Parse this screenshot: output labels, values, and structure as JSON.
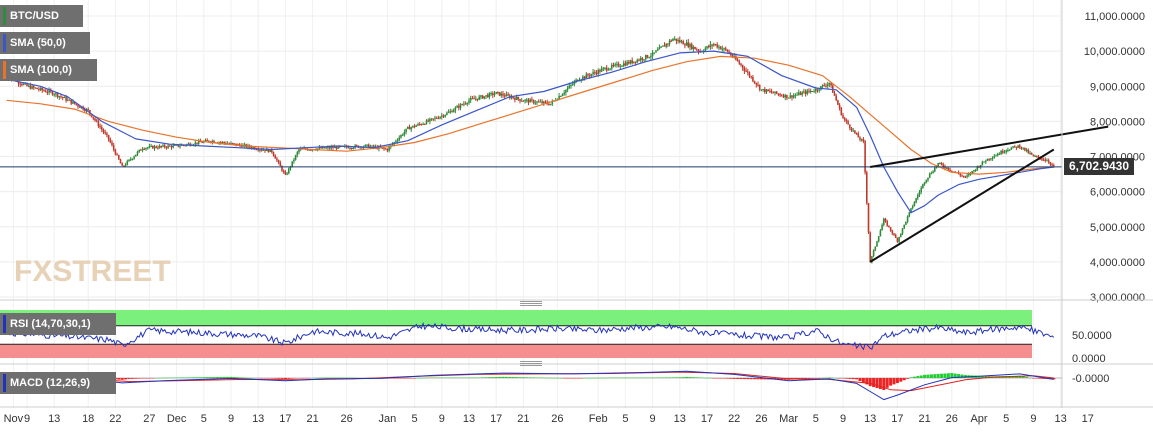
{
  "chart_data": {
    "type": "line",
    "symbol": "BTC/USD",
    "indicators": {
      "sma50_label": "SMA (50,0)",
      "sma100_label": "SMA (100,0)",
      "rsi_label": "RSI (14,70,30,1)",
      "macd_label": "MACD (12,26,9)"
    },
    "watermark": "FXSTREET",
    "colors": {
      "candle_up": "#2e8b3a",
      "candle_down": "#c0392b",
      "sma50": "#3a56c9",
      "sma100": "#e8742c",
      "price_line": "#1a3a6b",
      "trend": "#111111",
      "rsi_line": "#2233bb",
      "rsi_overbought": "#7cf07c",
      "rsi_oversold": "#f58f8f"
    },
    "current_price_label": "6,702.9430",
    "current_price": 6702.943,
    "y_axis": {
      "min": 3000,
      "max": 11000,
      "ticks": [
        "3,000.0000",
        "4,000.0000",
        "5,000.0000",
        "6,000.0000",
        "7,000.0000",
        "8,000.0000",
        "9,000.0000",
        "10,000.0000",
        "11,000.0000"
      ]
    },
    "x_labels": [
      {
        "day": -2,
        "label": "Nov"
      },
      {
        "day": 0,
        "label": "9"
      },
      {
        "day": 4,
        "label": "13"
      },
      {
        "day": 9,
        "label": "18"
      },
      {
        "day": 13,
        "label": "22"
      },
      {
        "day": 18,
        "label": "27"
      },
      {
        "day": 22,
        "label": "Dec"
      },
      {
        "day": 26,
        "label": "5"
      },
      {
        "day": 30,
        "label": "9"
      },
      {
        "day": 34,
        "label": "13"
      },
      {
        "day": 38,
        "label": "17"
      },
      {
        "day": 42,
        "label": "21"
      },
      {
        "day": 47,
        "label": "26"
      },
      {
        "day": 53,
        "label": "Jan"
      },
      {
        "day": 57,
        "label": "5"
      },
      {
        "day": 61,
        "label": "9"
      },
      {
        "day": 65,
        "label": "13"
      },
      {
        "day": 69,
        "label": "17"
      },
      {
        "day": 73,
        "label": "21"
      },
      {
        "day": 78,
        "label": "26"
      },
      {
        "day": 84,
        "label": "Feb"
      },
      {
        "day": 88,
        "label": "5"
      },
      {
        "day": 92,
        "label": "9"
      },
      {
        "day": 96,
        "label": "13"
      },
      {
        "day": 100,
        "label": "17"
      },
      {
        "day": 104,
        "label": "22"
      },
      {
        "day": 108,
        "label": "26"
      },
      {
        "day": 112,
        "label": "Mar"
      },
      {
        "day": 116,
        "label": "5"
      },
      {
        "day": 120,
        "label": "9"
      },
      {
        "day": 124,
        "label": "13"
      },
      {
        "day": 128,
        "label": "17"
      },
      {
        "day": 132,
        "label": "21"
      },
      {
        "day": 136,
        "label": "26"
      },
      {
        "day": 140,
        "label": "Apr"
      },
      {
        "day": 144,
        "label": "5"
      },
      {
        "day": 148,
        "label": "9"
      },
      {
        "day": 152,
        "label": "13"
      },
      {
        "day": 156,
        "label": "17"
      }
    ],
    "price_path": [
      [
        -3,
        9300
      ],
      [
        0,
        9000
      ],
      [
        4,
        8800
      ],
      [
        9,
        8300
      ],
      [
        12,
        7500
      ],
      [
        14,
        6700
      ],
      [
        17,
        7250
      ],
      [
        22,
        7300
      ],
      [
        27,
        7450
      ],
      [
        32,
        7300
      ],
      [
        36,
        7150
      ],
      [
        38,
        6450
      ],
      [
        40,
        7200
      ],
      [
        45,
        7250
      ],
      [
        50,
        7300
      ],
      [
        53,
        7200
      ],
      [
        56,
        7800
      ],
      [
        59,
        8000
      ],
      [
        62,
        8250
      ],
      [
        65,
        8600
      ],
      [
        69,
        8800
      ],
      [
        73,
        8600
      ],
      [
        77,
        8500
      ],
      [
        81,
        9200
      ],
      [
        85,
        9500
      ],
      [
        89,
        9700
      ],
      [
        92,
        9900
      ],
      [
        95,
        10350
      ],
      [
        97,
        10200
      ],
      [
        99,
        10000
      ],
      [
        101,
        10200
      ],
      [
        103,
        10000
      ],
      [
        105,
        9600
      ],
      [
        108,
        8900
      ],
      [
        112,
        8700
      ],
      [
        116,
        8900
      ],
      [
        118,
        9100
      ],
      [
        120,
        8100
      ],
      [
        122,
        7600
      ],
      [
        123,
        7400
      ],
      [
        124,
        4000
      ],
      [
        126,
        5200
      ],
      [
        128,
        4600
      ],
      [
        130,
        5500
      ],
      [
        132,
        6300
      ],
      [
        134,
        6800
      ],
      [
        136,
        6600
      ],
      [
        138,
        6400
      ],
      [
        141,
        6900
      ],
      [
        144,
        7200
      ],
      [
        146,
        7300
      ],
      [
        148,
        7000
      ],
      [
        150,
        6900
      ],
      [
        151,
        6702.943
      ]
    ],
    "sma50": [
      [
        -3,
        9200
      ],
      [
        2,
        9000
      ],
      [
        6,
        8700
      ],
      [
        11,
        8000
      ],
      [
        16,
        7500
      ],
      [
        21,
        7350
      ],
      [
        26,
        7300
      ],
      [
        31,
        7250
      ],
      [
        36,
        7200
      ],
      [
        41,
        7250
      ],
      [
        46,
        7300
      ],
      [
        51,
        7250
      ],
      [
        56,
        7450
      ],
      [
        61,
        7900
      ],
      [
        66,
        8300
      ],
      [
        71,
        8700
      ],
      [
        76,
        8850
      ],
      [
        81,
        9150
      ],
      [
        86,
        9400
      ],
      [
        91,
        9700
      ],
      [
        96,
        9950
      ],
      [
        101,
        10000
      ],
      [
        106,
        9850
      ],
      [
        111,
        9300
      ],
      [
        116,
        8950
      ],
      [
        119,
        8900
      ],
      [
        122,
        8400
      ],
      [
        124,
        7600
      ],
      [
        126,
        6700
      ],
      [
        128,
        6000
      ],
      [
        130,
        5400
      ],
      [
        132,
        5600
      ],
      [
        134,
        5900
      ],
      [
        137,
        6200
      ],
      [
        140,
        6350
      ],
      [
        143,
        6450
      ],
      [
        146,
        6550
      ],
      [
        149,
        6650
      ],
      [
        151,
        6700
      ]
    ],
    "sma100": [
      [
        -3,
        8600
      ],
      [
        2,
        8500
      ],
      [
        7,
        8350
      ],
      [
        12,
        8000
      ],
      [
        17,
        7750
      ],
      [
        22,
        7550
      ],
      [
        27,
        7400
      ],
      [
        32,
        7300
      ],
      [
        37,
        7250
      ],
      [
        42,
        7200
      ],
      [
        47,
        7150
      ],
      [
        52,
        7250
      ],
      [
        57,
        7400
      ],
      [
        62,
        7650
      ],
      [
        67,
        7950
      ],
      [
        72,
        8250
      ],
      [
        77,
        8550
      ],
      [
        82,
        8850
      ],
      [
        87,
        9150
      ],
      [
        92,
        9450
      ],
      [
        97,
        9700
      ],
      [
        102,
        9850
      ],
      [
        107,
        9800
      ],
      [
        112,
        9600
      ],
      [
        117,
        9300
      ],
      [
        121,
        8700
      ],
      [
        124,
        8200
      ],
      [
        127,
        7700
      ],
      [
        130,
        7200
      ],
      [
        133,
        6800
      ],
      [
        136,
        6550
      ],
      [
        140,
        6500
      ],
      [
        144,
        6550
      ],
      [
        148,
        6650
      ],
      [
        151,
        6700
      ]
    ],
    "trend_upper": [
      [
        124,
        6700
      ],
      [
        159,
        7850
      ]
    ],
    "trend_lower": [
      [
        124,
        4000
      ],
      [
        151,
        7200
      ]
    ],
    "rsi": {
      "levels": [
        70,
        30
      ],
      "ticks": [
        "50.0000",
        "0.0000"
      ],
      "path": [
        [
          -3,
          55
        ],
        [
          5,
          48
        ],
        [
          12,
          40
        ],
        [
          14,
          28
        ],
        [
          18,
          60
        ],
        [
          26,
          55
        ],
        [
          34,
          48
        ],
        [
          38,
          32
        ],
        [
          42,
          58
        ],
        [
          50,
          52
        ],
        [
          53,
          44
        ],
        [
          58,
          70
        ],
        [
          66,
          62
        ],
        [
          72,
          60
        ],
        [
          78,
          64
        ],
        [
          84,
          60
        ],
        [
          89,
          66
        ],
        [
          95,
          68
        ],
        [
          100,
          55
        ],
        [
          106,
          48
        ],
        [
          112,
          44
        ],
        [
          116,
          60
        ],
        [
          120,
          30
        ],
        [
          124,
          22
        ],
        [
          126,
          48
        ],
        [
          130,
          60
        ],
        [
          134,
          66
        ],
        [
          138,
          55
        ],
        [
          142,
          62
        ],
        [
          146,
          68
        ],
        [
          149,
          55
        ],
        [
          151,
          45
        ]
      ]
    },
    "macd": {
      "ticks": [
        "-0.0000"
      ],
      "macd_path": [
        [
          -3,
          0
        ],
        [
          10,
          -40
        ],
        [
          14,
          -110
        ],
        [
          20,
          -60
        ],
        [
          30,
          -10
        ],
        [
          38,
          -60
        ],
        [
          44,
          -20
        ],
        [
          52,
          -10
        ],
        [
          60,
          60
        ],
        [
          70,
          110
        ],
        [
          80,
          90
        ],
        [
          90,
          120
        ],
        [
          97,
          150
        ],
        [
          104,
          80
        ],
        [
          112,
          -60
        ],
        [
          118,
          -20
        ],
        [
          122,
          -120
        ],
        [
          124,
          -300
        ],
        [
          126,
          -480
        ],
        [
          128,
          -380
        ],
        [
          132,
          -150
        ],
        [
          136,
          10
        ],
        [
          140,
          40
        ],
        [
          146,
          90
        ],
        [
          151,
          -30
        ]
      ],
      "signal_path": [
        [
          -3,
          0
        ],
        [
          10,
          -30
        ],
        [
          15,
          -80
        ],
        [
          22,
          -60
        ],
        [
          32,
          -30
        ],
        [
          40,
          -40
        ],
        [
          48,
          -20
        ],
        [
          56,
          30
        ],
        [
          66,
          80
        ],
        [
          76,
          90
        ],
        [
          86,
          100
        ],
        [
          96,
          130
        ],
        [
          104,
          100
        ],
        [
          112,
          -20
        ],
        [
          118,
          -30
        ],
        [
          124,
          -120
        ],
        [
          127,
          -260
        ],
        [
          130,
          -280
        ],
        [
          134,
          -160
        ],
        [
          138,
          -40
        ],
        [
          142,
          20
        ],
        [
          148,
          50
        ],
        [
          151,
          0
        ]
      ]
    }
  }
}
